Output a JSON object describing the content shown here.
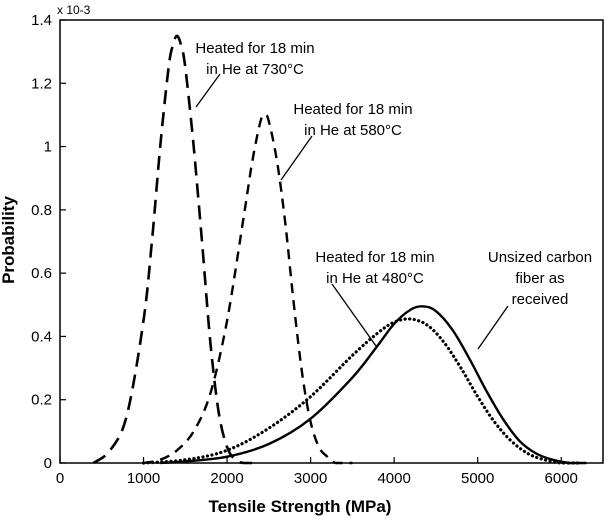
{
  "chart_data": {
    "type": "line",
    "title": "",
    "xlabel": "Tensile Strength (MPa)",
    "ylabel": "Probability",
    "y_scale_note": "x 10-3",
    "xlim": [
      0,
      6500
    ],
    "ylim": [
      0,
      1.4
    ],
    "x_ticks": [
      0,
      1000,
      2000,
      3000,
      4000,
      5000,
      6000
    ],
    "y_ticks": [
      0,
      0.2,
      0.4,
      0.6,
      0.8,
      1.0,
      1.2,
      1.4
    ],
    "y_tick_labels": [
      "0",
      "0.2",
      "0.4",
      "0.6",
      "0.8",
      "1",
      "1.2",
      "1.4"
    ],
    "grid": false,
    "legend": "none",
    "series": [
      {
        "style": "long-dash",
        "x": [
          400,
          600,
          800,
          1000,
          1100,
          1200,
          1300,
          1350,
          1400,
          1450,
          1500,
          1600,
          1700,
          1800,
          1900,
          2000,
          2100,
          2200,
          2300
        ],
        "y": [
          0.0,
          0.04,
          0.15,
          0.45,
          0.7,
          1.0,
          1.25,
          1.32,
          1.35,
          1.32,
          1.25,
          1.0,
          0.7,
          0.38,
          0.16,
          0.05,
          0.01,
          0.0,
          0.0
        ]
      },
      {
        "style": "medium-dash",
        "x": [
          1000,
          1200,
          1400,
          1600,
          1800,
          2000,
          2200,
          2300,
          2400,
          2450,
          2500,
          2600,
          2700,
          2800,
          2900,
          3000,
          3100,
          3200,
          3300,
          3500
        ],
        "y": [
          0.0,
          0.01,
          0.04,
          0.1,
          0.22,
          0.45,
          0.78,
          0.95,
          1.08,
          1.1,
          1.08,
          0.95,
          0.75,
          0.5,
          0.28,
          0.13,
          0.05,
          0.02,
          0.0,
          0.0
        ]
      },
      {
        "style": "dotted",
        "x": [
          1000,
          1500,
          2000,
          2500,
          3000,
          3500,
          3800,
          4000,
          4200,
          4400,
          4600,
          4800,
          5000,
          5200,
          5400,
          5600,
          5800,
          6000,
          6200
        ],
        "y": [
          0.0,
          0.01,
          0.04,
          0.11,
          0.21,
          0.34,
          0.41,
          0.445,
          0.455,
          0.435,
          0.38,
          0.3,
          0.21,
          0.13,
          0.07,
          0.03,
          0.01,
          0.0,
          0.0
        ]
      },
      {
        "style": "solid",
        "x": [
          1200,
          1500,
          2000,
          2500,
          3000,
          3500,
          3800,
          4000,
          4200,
          4350,
          4500,
          4700,
          4900,
          5100,
          5300,
          5500,
          5700,
          5900,
          6100,
          6300
        ],
        "y": [
          0.0,
          0.005,
          0.02,
          0.06,
          0.14,
          0.27,
          0.37,
          0.44,
          0.485,
          0.495,
          0.48,
          0.42,
          0.33,
          0.23,
          0.14,
          0.07,
          0.03,
          0.01,
          0.0,
          0.0
        ]
      }
    ],
    "annotations": [
      {
        "lines": [
          "Heated for 18 min",
          "in He at 730°C"
        ],
        "series": 0
      },
      {
        "lines": [
          "Heated for 18 min",
          "in He at 580°C"
        ],
        "series": 1
      },
      {
        "lines": [
          "Heated for 18 min",
          "in He at 480°C"
        ],
        "series": 2
      },
      {
        "lines": [
          "Unsized carbon",
          "fiber as",
          "received"
        ],
        "series": 3
      }
    ]
  }
}
